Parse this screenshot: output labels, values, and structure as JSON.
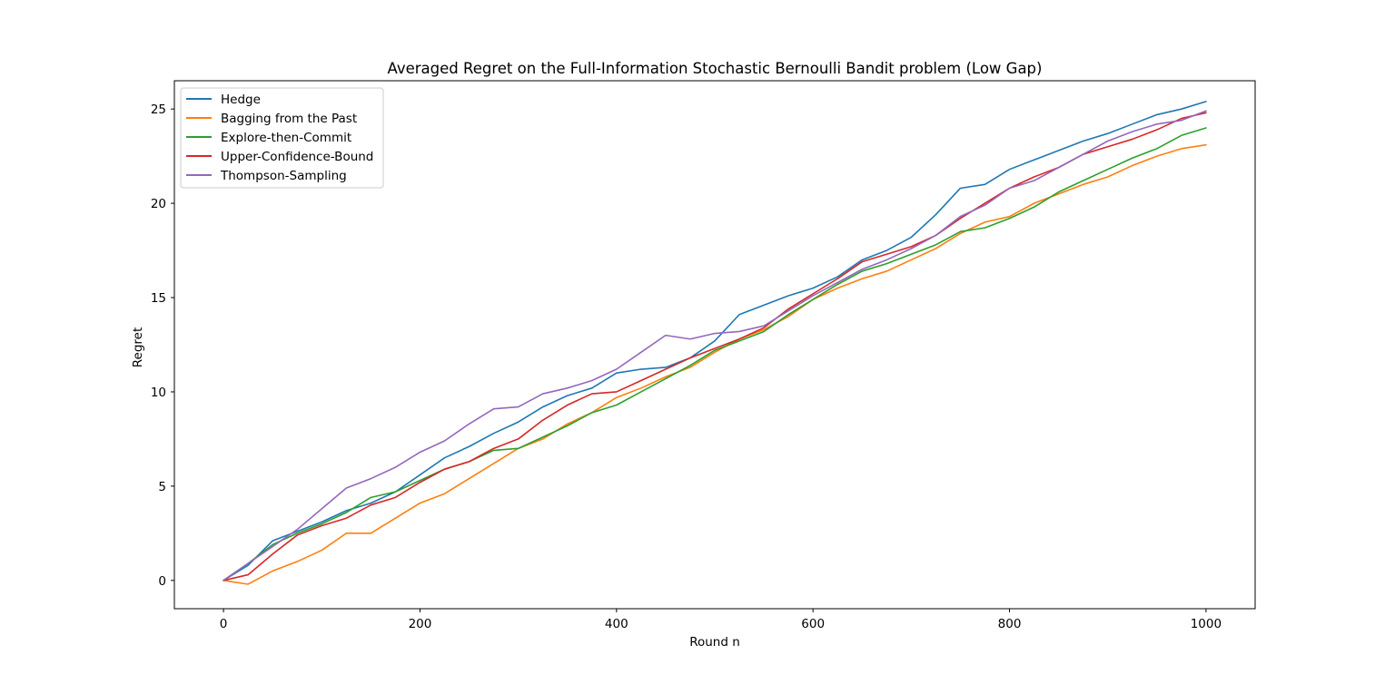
{
  "chart_data": {
    "type": "line",
    "title": "Averaged Regret on the Full-Information Stochastic Bernoulli Bandit problem (Low Gap)",
    "xlabel": "Round n",
    "ylabel": "Regret",
    "xlim": [
      -50,
      1050
    ],
    "ylim": [
      -1.5,
      26.5
    ],
    "xticks": [
      0,
      200,
      400,
      600,
      800,
      1000
    ],
    "yticks": [
      0,
      5,
      10,
      15,
      20,
      25
    ],
    "xtick_labels": [
      "0",
      "200",
      "400",
      "600",
      "800",
      "1000"
    ],
    "ytick_labels": [
      "0",
      "5",
      "10",
      "15",
      "20",
      "25"
    ],
    "grid": false,
    "legend_position": "upper-left",
    "x": [
      0,
      25,
      50,
      75,
      100,
      125,
      150,
      175,
      200,
      225,
      250,
      275,
      300,
      325,
      350,
      375,
      400,
      425,
      450,
      475,
      500,
      525,
      550,
      575,
      600,
      625,
      650,
      675,
      700,
      725,
      750,
      775,
      800,
      825,
      850,
      875,
      900,
      925,
      950,
      975,
      1000
    ],
    "series": [
      {
        "name": "Hedge",
        "color": "#1f77b4",
        "values": [
          0.0,
          0.8,
          2.1,
          2.6,
          3.1,
          3.7,
          4.1,
          4.7,
          5.6,
          6.5,
          7.1,
          7.8,
          8.4,
          9.2,
          9.8,
          10.2,
          11.0,
          11.2,
          11.3,
          11.8,
          12.7,
          14.1,
          14.6,
          15.1,
          15.5,
          16.1,
          17.0,
          17.5,
          18.2,
          19.4,
          20.8,
          21.0,
          21.8,
          22.3,
          22.8,
          23.3,
          23.7,
          24.2,
          24.7,
          25.0,
          25.4
        ]
      },
      {
        "name": "Bagging from the Past",
        "color": "#ff7f0e",
        "values": [
          0.0,
          -0.2,
          0.5,
          1.0,
          1.6,
          2.5,
          2.5,
          3.3,
          4.1,
          4.6,
          5.4,
          6.2,
          7.0,
          7.5,
          8.3,
          8.9,
          9.7,
          10.2,
          10.8,
          11.3,
          12.1,
          12.8,
          13.3,
          14.0,
          14.9,
          15.5,
          16.0,
          16.4,
          17.0,
          17.6,
          18.4,
          19.0,
          19.3,
          20.0,
          20.5,
          21.0,
          21.4,
          22.0,
          22.5,
          22.9,
          23.1
        ]
      },
      {
        "name": "Explore-then-Commit",
        "color": "#2ca02c",
        "values": [
          0.0,
          0.9,
          1.9,
          2.5,
          3.0,
          3.6,
          4.4,
          4.7,
          5.3,
          5.9,
          6.3,
          6.9,
          7.0,
          7.6,
          8.2,
          8.9,
          9.3,
          10.0,
          10.7,
          11.4,
          12.2,
          12.7,
          13.2,
          14.1,
          14.9,
          15.7,
          16.4,
          16.8,
          17.3,
          17.8,
          18.5,
          18.7,
          19.2,
          19.8,
          20.6,
          21.2,
          21.8,
          22.4,
          22.9,
          23.6,
          24.0
        ]
      },
      {
        "name": "Upper-Confidence-Bound",
        "color": "#d62728",
        "values": [
          0.0,
          0.3,
          1.4,
          2.4,
          2.9,
          3.3,
          4.0,
          4.4,
          5.2,
          5.9,
          6.3,
          7.0,
          7.5,
          8.5,
          9.3,
          9.9,
          10.0,
          10.6,
          11.2,
          11.8,
          12.3,
          12.8,
          13.4,
          14.4,
          15.2,
          16.0,
          16.9,
          17.3,
          17.7,
          18.3,
          19.2,
          20.0,
          20.8,
          21.4,
          21.9,
          22.6,
          23.0,
          23.4,
          23.9,
          24.5,
          24.8
        ]
      },
      {
        "name": "Thompson-Sampling",
        "color": "#9467bd",
        "values": [
          0.0,
          0.9,
          1.8,
          2.7,
          3.8,
          4.9,
          5.4,
          6.0,
          6.8,
          7.4,
          8.3,
          9.1,
          9.2,
          9.9,
          10.2,
          10.6,
          11.2,
          12.1,
          13.0,
          12.8,
          13.1,
          13.2,
          13.5,
          14.3,
          15.1,
          15.8,
          16.5,
          17.0,
          17.6,
          18.3,
          19.3,
          19.9,
          20.8,
          21.2,
          21.9,
          22.6,
          23.3,
          23.8,
          24.2,
          24.4,
          24.9
        ]
      }
    ]
  }
}
